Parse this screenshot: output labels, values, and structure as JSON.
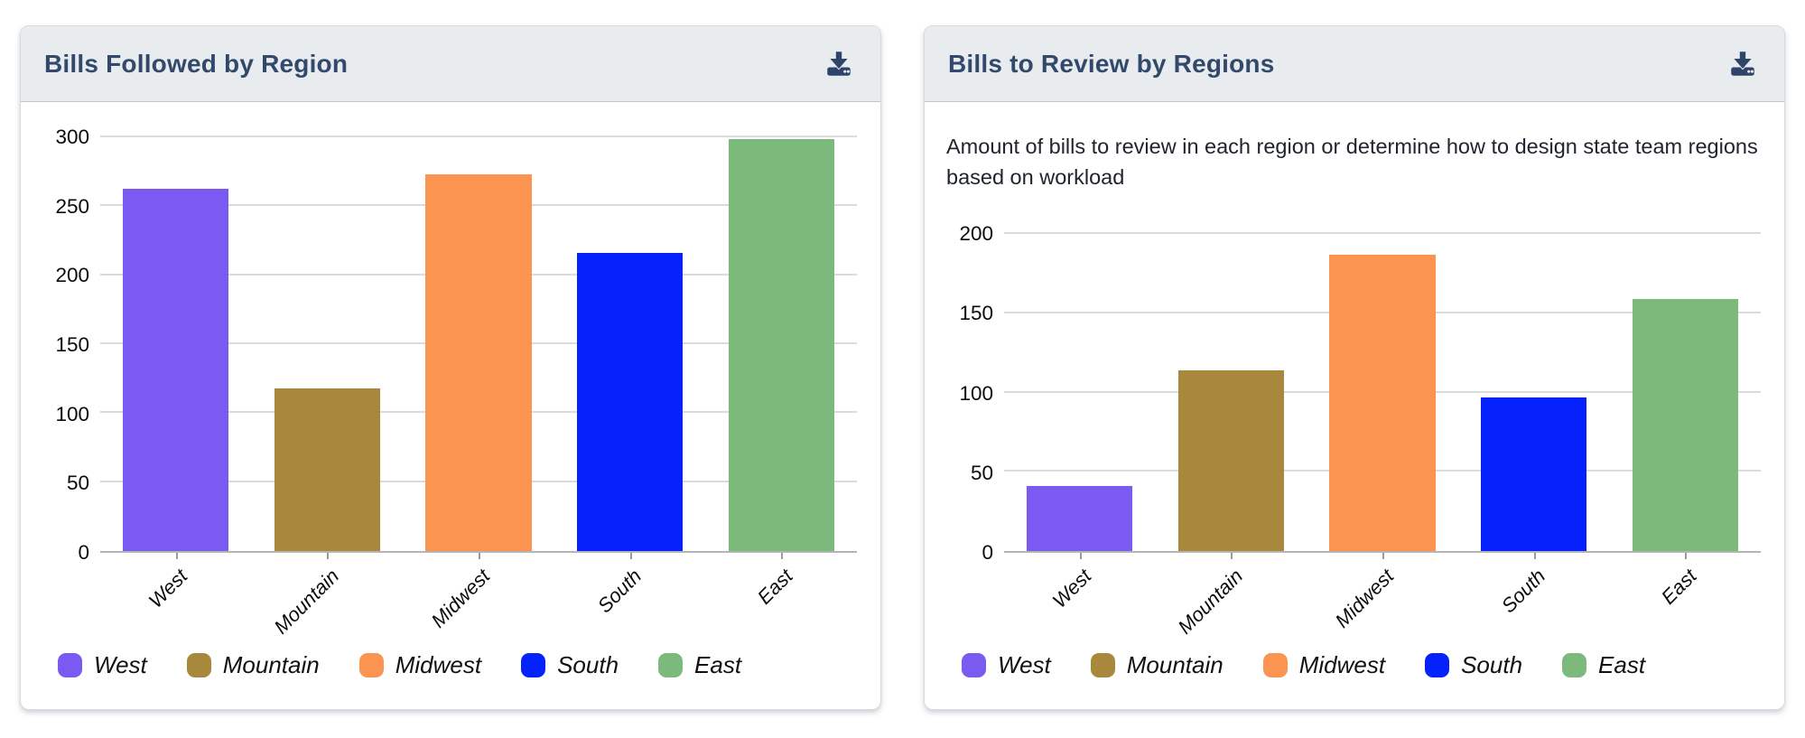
{
  "theme": {
    "title_color": "#33496B",
    "header_bg": "#E9ECEF",
    "icon_color": "#2E4468",
    "grid_color": "#DBDBDB",
    "axis_color": "#B5B5B5"
  },
  "chart_data": [
    {
      "type": "bar",
      "title": "Bills Followed by Region",
      "header_icon": "download-icon",
      "categories": [
        "West",
        "Mountain",
        "Midwest",
        "South",
        "East"
      ],
      "values": [
        263,
        118,
        273,
        216,
        299
      ],
      "bar_colors": [
        "#7A5AF0",
        "#A8883C",
        "#FB9351",
        "#0522FC",
        "#7CBA7C"
      ],
      "xlabel": "",
      "ylabel": "",
      "ylim": [
        0,
        300
      ],
      "yticks": [
        0,
        50,
        100,
        150,
        200,
        250,
        300
      ],
      "grid": true,
      "legend_position": "bottom",
      "legend": [
        {
          "label": "West",
          "color": "#7A5AF0"
        },
        {
          "label": "Mountain",
          "color": "#A8883C"
        },
        {
          "label": "Midwest",
          "color": "#FB9351"
        },
        {
          "label": "South",
          "color": "#0522FC"
        },
        {
          "label": "East",
          "color": "#7CBA7C"
        }
      ]
    },
    {
      "type": "bar",
      "title": "Bills to Review by Regions",
      "subtitle": "Amount of bills to review in each region or determine how to design state team regions based on workload",
      "header_icon": "download-icon",
      "categories": [
        "West",
        "Mountain",
        "Midwest",
        "South",
        "East"
      ],
      "values": [
        41,
        114,
        187,
        97,
        159
      ],
      "bar_colors": [
        "#7A5AF0",
        "#A8883C",
        "#FB9351",
        "#0522FC",
        "#7CBA7C"
      ],
      "xlabel": "",
      "ylabel": "",
      "ylim": [
        0,
        200
      ],
      "yticks": [
        0,
        50,
        100,
        150,
        200
      ],
      "grid": true,
      "legend_position": "bottom",
      "legend": [
        {
          "label": "West",
          "color": "#7A5AF0"
        },
        {
          "label": "Mountain",
          "color": "#A8883C"
        },
        {
          "label": "Midwest",
          "color": "#FB9351"
        },
        {
          "label": "South",
          "color": "#0522FC"
        },
        {
          "label": "East",
          "color": "#7CBA7C"
        }
      ]
    }
  ]
}
